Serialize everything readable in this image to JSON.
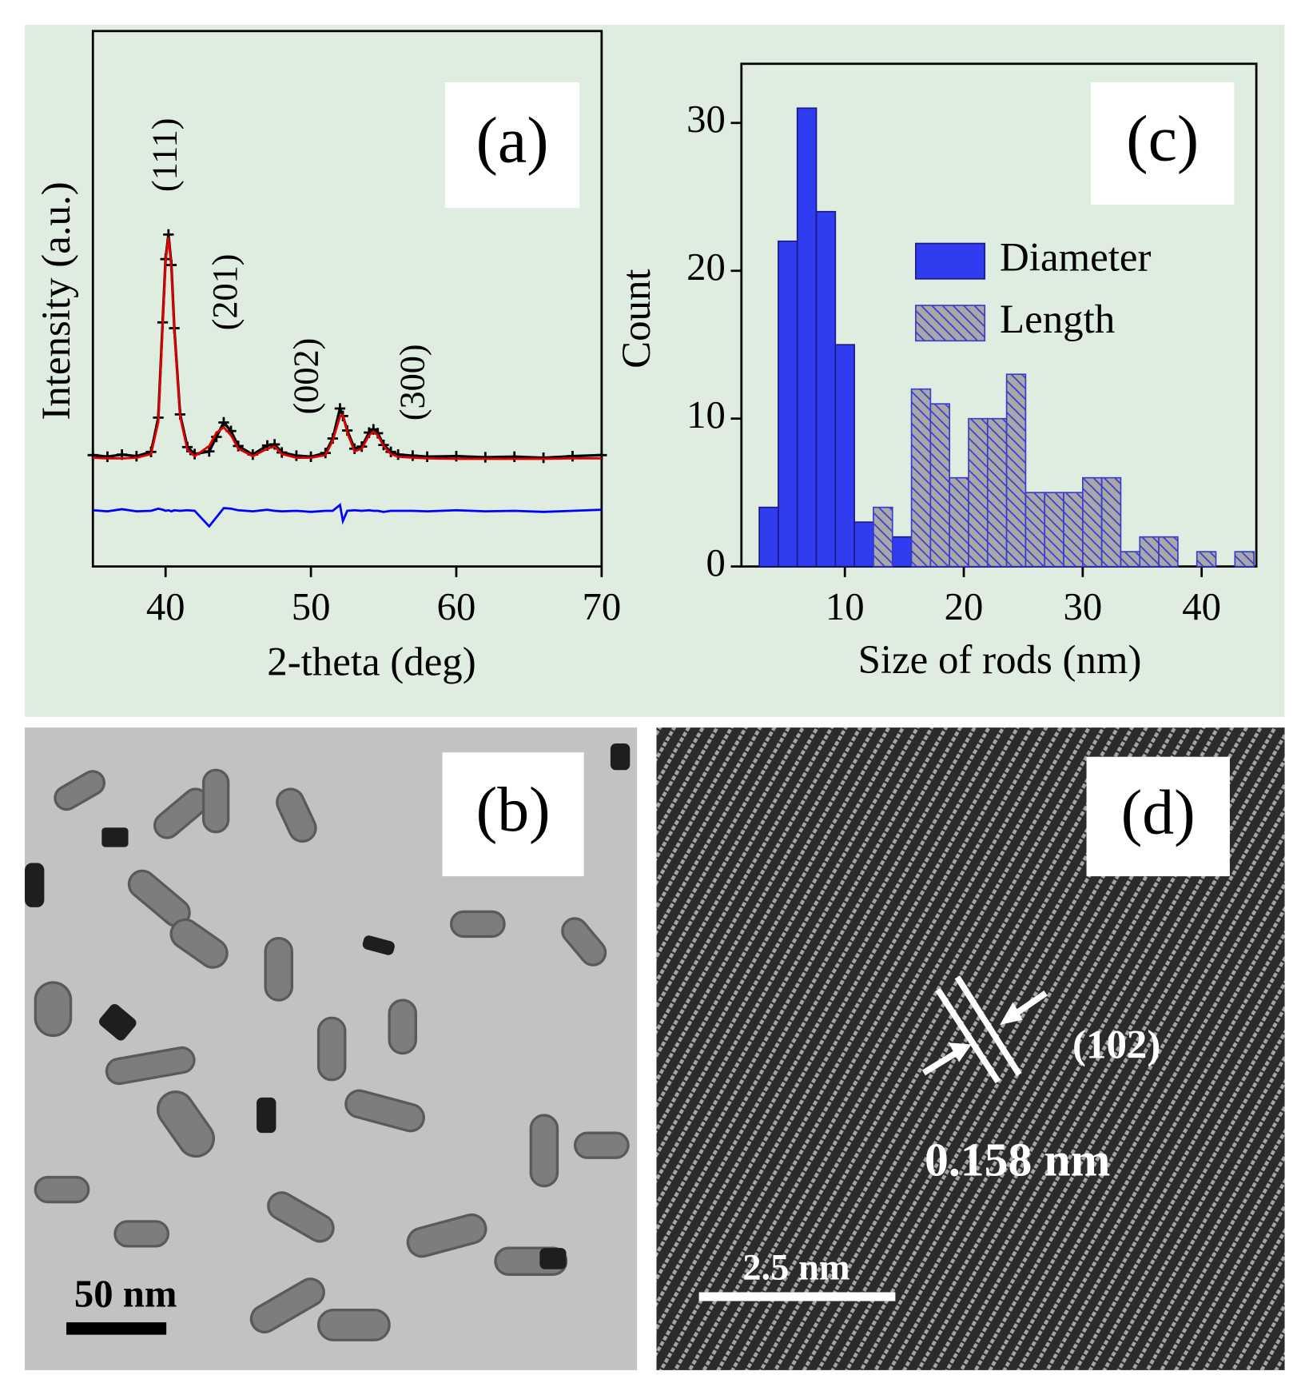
{
  "chart_data": [
    {
      "type": "line",
      "label": "(a)",
      "xlabel": "2-theta (deg)",
      "ylabel": "Intensity (a.u.)",
      "x": [
        35,
        36,
        37,
        38,
        39,
        39.5,
        39.8,
        40,
        40.2,
        40.4,
        40.6,
        41,
        41.5,
        42,
        43,
        43.5,
        44,
        44.5,
        45,
        46,
        47,
        47.5,
        48,
        49,
        50,
        51,
        51.5,
        52,
        52.2,
        52.5,
        53,
        53.5,
        54,
        54.3,
        54.6,
        55,
        55.5,
        56,
        57,
        58,
        60,
        62,
        64,
        66,
        68,
        70
      ],
      "series": [
        {
          "color": "#000000",
          "marker": "+",
          "values": [
            20.8,
            20.5,
            20.9,
            20.6,
            21.4,
            27.8,
            45.6,
            57.4,
            62,
            56.3,
            44.5,
            28.4,
            22.3,
            21,
            21.5,
            24.2,
            26.9,
            25.3,
            22.5,
            20.9,
            22.6,
            22.8,
            21.3,
            20.7,
            20.5,
            21.2,
            23.9,
            29.5,
            28.1,
            25.4,
            22,
            22.4,
            25,
            25.6,
            24.9,
            22.7,
            21.4,
            20.9,
            20.7,
            20.5,
            20.6,
            20.4,
            20.5,
            20.3,
            20.6,
            20.8
          ]
        },
        {
          "color": "#e00000",
          "values": [
            20.3,
            20.2,
            20.2,
            20.3,
            21,
            27,
            45,
            57,
            61.5,
            56,
            44,
            28,
            21.8,
            20.6,
            22.5,
            25,
            26,
            24.5,
            22,
            20.6,
            22,
            22.4,
            21,
            20.3,
            20.3,
            20.8,
            23.5,
            28,
            28.3,
            25,
            21.5,
            22,
            24.5,
            25.2,
            24.5,
            22.5,
            21,
            20.5,
            20.3,
            20.2,
            20.1,
            20.1,
            20.1,
            20.1,
            20.2,
            20.2
          ]
        },
        {
          "color": "#0000ff",
          "values": [
            10.5,
            10.3,
            10.7,
            10.3,
            10.4,
            10.8,
            10.6,
            10.4,
            10.5,
            10.3,
            10.5,
            10.4,
            10.5,
            10.4,
            7.5,
            9.2,
            10.9,
            10.8,
            10.5,
            10.3,
            10.6,
            10.4,
            10.3,
            10.4,
            10.2,
            10.4,
            10.4,
            11.5,
            8.5,
            10.4,
            10.5,
            10.4,
            10.5,
            10.4,
            10.4,
            10.2,
            10.4,
            10.4,
            10.4,
            10.3,
            10.5,
            10.3,
            10.4,
            10.2,
            10.4,
            10.6
          ]
        }
      ],
      "peak_labels": [
        "(111)",
        "(201)",
        "(002)",
        "(300)"
      ],
      "xlim": [
        35,
        70
      ],
      "xticks": [
        40,
        50,
        60,
        70
      ],
      "ylim": [
        0,
        100
      ]
    },
    {
      "type": "histogram",
      "label": "(c)",
      "xlabel": "Size of rods (nm)",
      "ylabel": "Count",
      "series": [
        {
          "name": "Diameter",
          "color": "#2f3cf0",
          "bins": [
            2.8,
            4.4,
            6.0,
            7.6,
            9.2,
            10.8,
            12.4,
            14.0,
            15.6
          ],
          "values": [
            4,
            22,
            31,
            24,
            15,
            3,
            0,
            2
          ]
        },
        {
          "name": "Length",
          "color": "#a8a8a8",
          "hatch": true,
          "hatch_color": "#3a3ad0",
          "bins": [
            12.4,
            14.0,
            15.6,
            17.2,
            18.8,
            20.4,
            22.0,
            23.6,
            25.2,
            26.8,
            28.4,
            30.0,
            31.6,
            33.2,
            34.8,
            36.4,
            38.0,
            39.6,
            41.2,
            42.8,
            44.4
          ],
          "values": [
            4,
            0,
            12,
            11,
            6,
            10,
            10,
            13,
            5,
            5,
            5,
            6,
            6,
            1,
            2,
            2,
            0,
            1,
            0,
            1
          ]
        }
      ],
      "xlim": [
        1.3,
        44.6
      ],
      "xticks": [
        10,
        20,
        30,
        40
      ],
      "ylim": [
        0,
        34
      ],
      "yticks": [
        0,
        10,
        20,
        30
      ],
      "legend": "right"
    }
  ],
  "images": [
    {
      "label": "(b)",
      "scale_bar": "50 nm"
    },
    {
      "label": "(d)",
      "scale_bar": "2.5 nm",
      "plane": "(102)",
      "spacing": "0.158 nm"
    }
  ]
}
